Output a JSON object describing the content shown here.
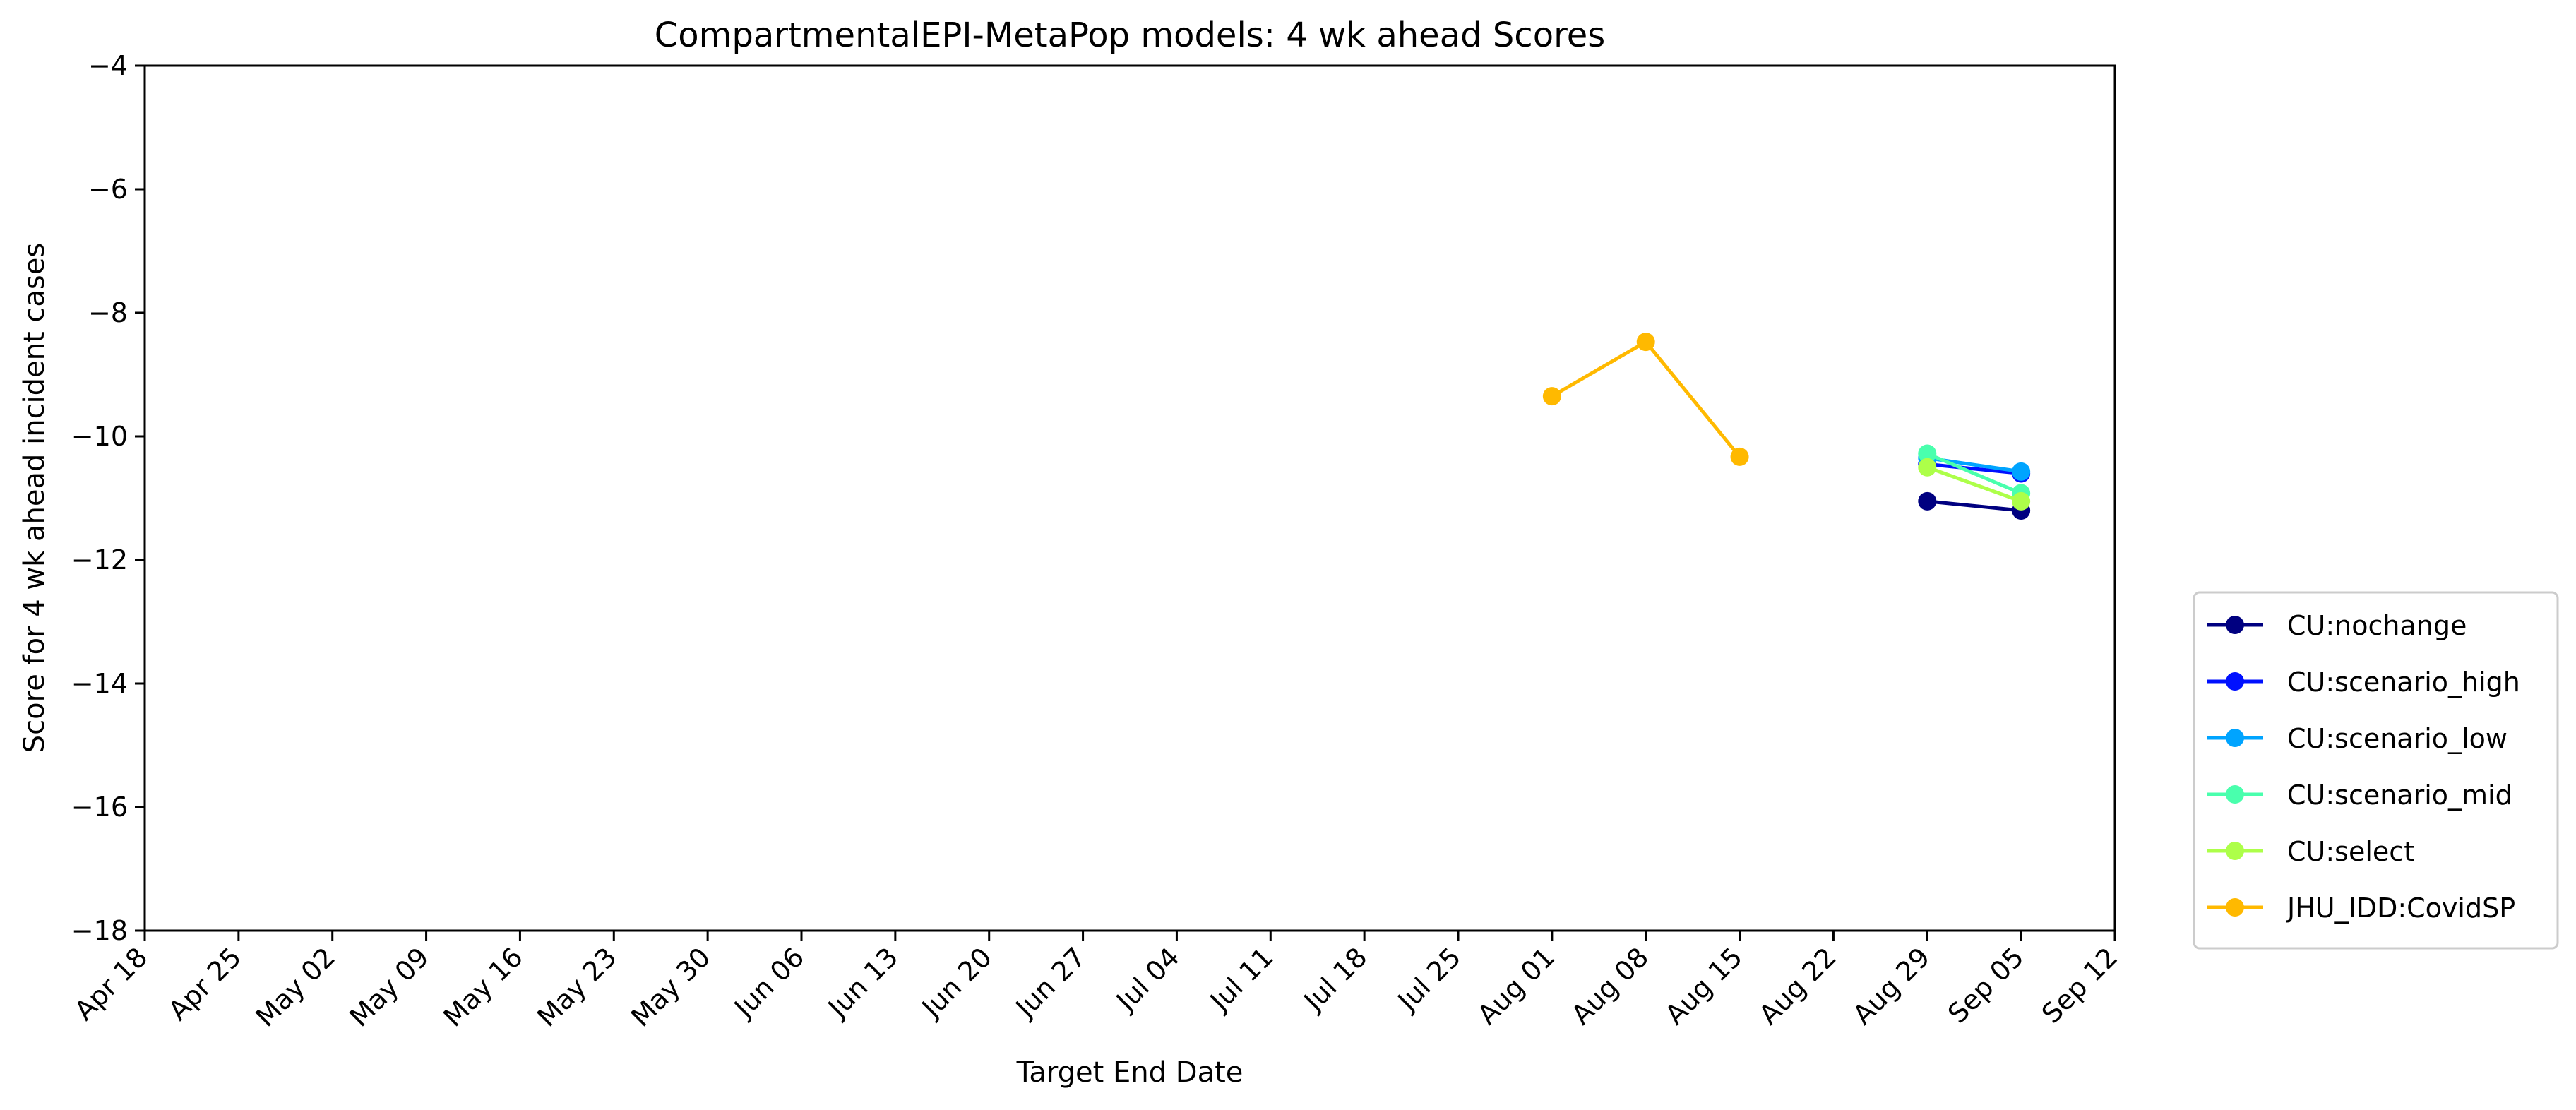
{
  "chart_data": {
    "type": "line",
    "title": "CompartmentalEPI-MetaPop models: 4 wk ahead Scores",
    "xlabel": "Target End Date",
    "ylabel": "Score for 4 wk ahead incident cases",
    "ylim": [
      -18,
      -4
    ],
    "yticks": [
      -18,
      -16,
      -14,
      -12,
      -10,
      -8,
      -6,
      -4
    ],
    "yticklabels": [
      "−18",
      "−16",
      "−14",
      "−12",
      "−10",
      "−8",
      "−6",
      "−4"
    ],
    "xlim": [
      "2021-04-18",
      "2021-09-12"
    ],
    "xticks": [
      "2021-04-18",
      "2021-04-25",
      "2021-05-02",
      "2021-05-09",
      "2021-05-16",
      "2021-05-23",
      "2021-05-30",
      "2021-06-06",
      "2021-06-13",
      "2021-06-20",
      "2021-06-27",
      "2021-07-04",
      "2021-07-11",
      "2021-07-18",
      "2021-07-25",
      "2021-08-01",
      "2021-08-08",
      "2021-08-15",
      "2021-08-22",
      "2021-08-29",
      "2021-09-05",
      "2021-09-12"
    ],
    "xticklabels": [
      "Apr 18",
      "Apr 25",
      "May 02",
      "May 09",
      "May 16",
      "May 23",
      "May 30",
      "Jun 06",
      "Jun 13",
      "Jun 20",
      "Jun 27",
      "Jul 04",
      "Jul 11",
      "Jul 18",
      "Jul 25",
      "Aug 01",
      "Aug 08",
      "Aug 15",
      "Aug 22",
      "Aug 29",
      "Sep 05",
      "Sep 12"
    ],
    "grid": false,
    "legend_position": "outside-right",
    "series": [
      {
        "name": "CU:nochange",
        "color": "#000080",
        "x": [
          "2021-08-29",
          "2021-09-05"
        ],
        "y": [
          -11.05,
          -11.2
        ]
      },
      {
        "name": "CU:scenario_high",
        "color": "#0010ff",
        "x": [
          "2021-08-29",
          "2021-09-05"
        ],
        "y": [
          -10.45,
          -10.6
        ]
      },
      {
        "name": "CU:scenario_low",
        "color": "#00a4ff",
        "x": [
          "2021-08-29",
          "2021-09-05"
        ],
        "y": [
          -10.35,
          -10.57
        ]
      },
      {
        "name": "CU:scenario_mid",
        "color": "#49ffad",
        "x": [
          "2021-08-29",
          "2021-09-05"
        ],
        "y": [
          -10.28,
          -10.92
        ]
      },
      {
        "name": "CU:select",
        "color": "#adff49",
        "x": [
          "2021-08-29",
          "2021-09-05"
        ],
        "y": [
          -10.5,
          -11.05
        ]
      },
      {
        "name": "JHU_IDD:CovidSP",
        "color": "#ffb900",
        "x": [
          "2021-08-01",
          "2021-08-08",
          "2021-08-15"
        ],
        "y": [
          -9.35,
          -8.47,
          -10.33
        ]
      }
    ]
  }
}
